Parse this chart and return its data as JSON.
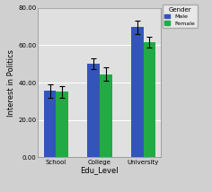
{
  "categories": [
    "School",
    "College",
    "University"
  ],
  "male_values": [
    35.5,
    50.0,
    69.5
  ],
  "female_values": [
    35.0,
    44.5,
    61.5
  ],
  "male_errors": [
    3.5,
    3.0,
    3.5
  ],
  "female_errors": [
    3.0,
    3.5,
    3.0
  ],
  "male_color": "#3355BB",
  "female_color": "#22AA44",
  "xlabel": "Edu_Level",
  "ylabel": "Interest in Politics",
  "ylim": [
    0,
    80
  ],
  "yticks": [
    0,
    20,
    40,
    60,
    80
  ],
  "ytick_labels": [
    "0.00",
    "20.00",
    "40.00",
    "60.00",
    "80.00"
  ],
  "legend_title": "Gender",
  "legend_male": "Male",
  "legend_female": "Female",
  "plot_bg_color": "#E0E0E0",
  "fig_bg_color": "#D0D0D0",
  "bar_width": 0.28
}
